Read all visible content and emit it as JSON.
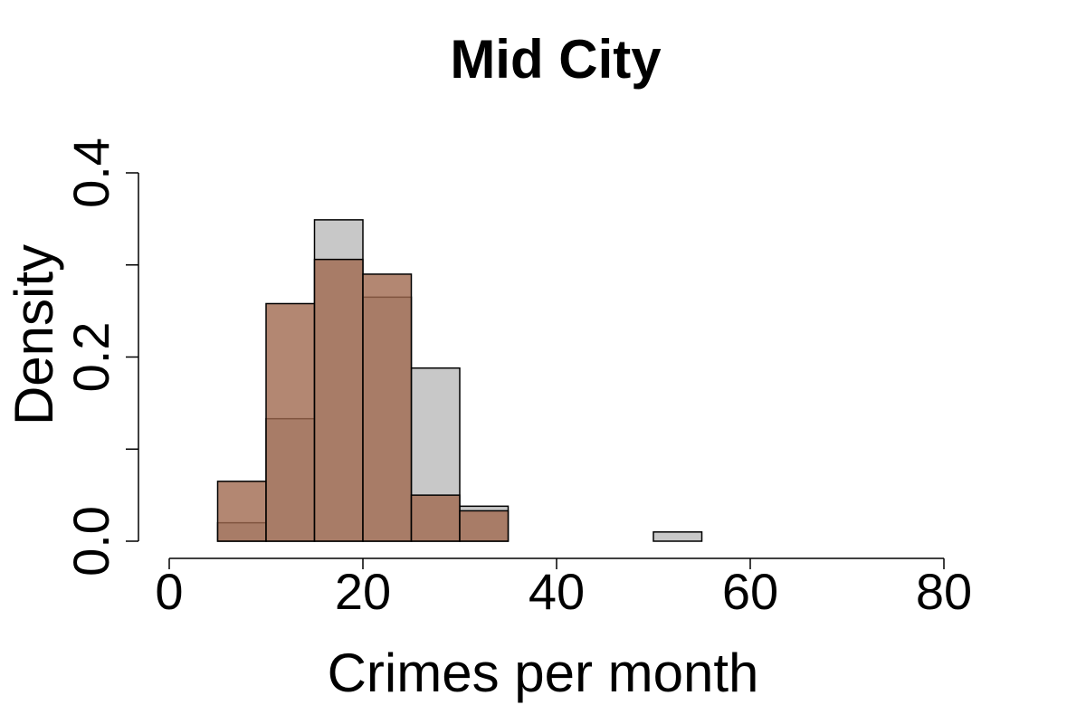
{
  "chart_data": {
    "type": "histogram",
    "title": "Mid City",
    "xlabel": "Crimes per month",
    "ylabel": "Density",
    "xlim": [
      0,
      80
    ],
    "ylim": [
      0,
      0.4
    ],
    "x_ticks": [
      0,
      20,
      40,
      60,
      80
    ],
    "x_tick_labels": [
      "0",
      "20",
      "40",
      "60",
      "80"
    ],
    "y_ticks": [
      0,
      0.1,
      0.2,
      0.3,
      0.4
    ],
    "y_tick_labels": [
      "0.0",
      "",
      "0.2",
      "",
      "0.4"
    ],
    "bin_width": 5,
    "series": [
      {
        "color": "#c8c8c8",
        "bins": [
          {
            "start": 0,
            "value": 0.0
          },
          {
            "start": 5,
            "value": 0.02
          },
          {
            "start": 10,
            "value": 0.133
          },
          {
            "start": 15,
            "value": 0.349
          },
          {
            "start": 20,
            "value": 0.265
          },
          {
            "start": 25,
            "value": 0.188
          },
          {
            "start": 30,
            "value": 0.038
          },
          {
            "start": 35,
            "value": 0.0
          },
          {
            "start": 40,
            "value": 0.0
          },
          {
            "start": 45,
            "value": 0.0
          },
          {
            "start": 50,
            "value": 0.01
          }
        ]
      },
      {
        "color": "#a0694f",
        "opacity": 0.8,
        "bins": [
          {
            "start": 5,
            "value": 0.065
          },
          {
            "start": 10,
            "value": 0.258
          },
          {
            "start": 15,
            "value": 0.306
          },
          {
            "start": 20,
            "value": 0.29
          },
          {
            "start": 25,
            "value": 0.05
          },
          {
            "start": 30,
            "value": 0.033
          }
        ]
      }
    ]
  }
}
